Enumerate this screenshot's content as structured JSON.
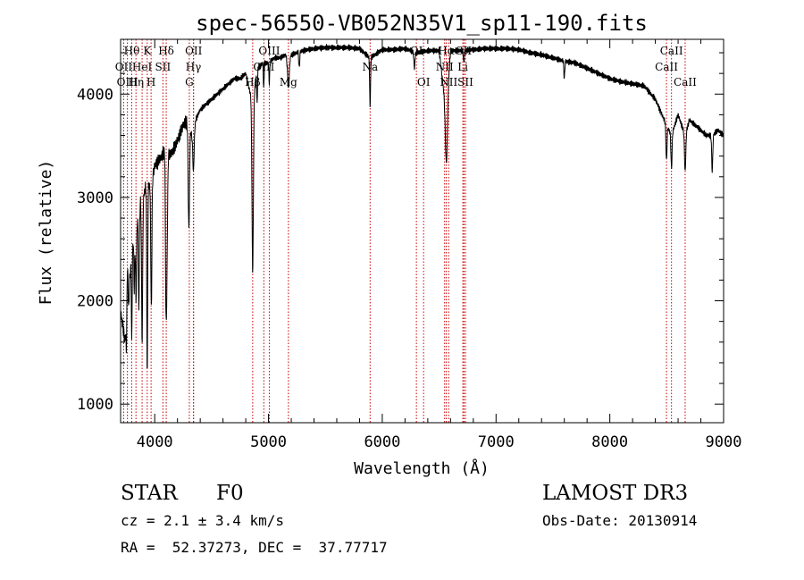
{
  "chart_data": {
    "type": "line",
    "title": "spec-56550-VB052N35V1_sp11-190.fits",
    "xlabel": "Wavelength (Å)",
    "ylabel": "Flux (relative)",
    "xlim": [
      3700,
      9000
    ],
    "ylim": [
      820,
      4530
    ],
    "xticks": [
      4000,
      5000,
      6000,
      7000,
      8000,
      9000
    ],
    "yticks": [
      1000,
      2000,
      3000,
      4000
    ],
    "grid": false,
    "spectrum_anchor_points": {
      "wavelength": [
        3700,
        3740,
        3760,
        3780,
        3800,
        3820,
        3840,
        3860,
        3880,
        3900,
        3920,
        3940,
        3960,
        3980,
        4000,
        4030,
        4060,
        4090,
        4101,
        4120,
        4160,
        4200,
        4250,
        4300,
        4340,
        4360,
        4400,
        4450,
        4500,
        4550,
        4600,
        4650,
        4700,
        4750,
        4800,
        4861,
        4900,
        4950,
        5000,
        5050,
        5100,
        5150,
        5175,
        5200,
        5250,
        5300,
        5350,
        5400,
        5500,
        5600,
        5700,
        5800,
        5893,
        6000,
        6100,
        6200,
        6300,
        6400,
        6500,
        6563,
        6600,
        6700,
        6800,
        6900,
        7000,
        7100,
        7200,
        7300,
        7400,
        7500,
        7600,
        7700,
        7800,
        7900,
        8000,
        8100,
        8200,
        8300,
        8400,
        8498,
        8542,
        8600,
        8662,
        8700,
        8750,
        8800,
        8850,
        8900,
        8950,
        9000
      ],
      "flux": [
        1900,
        1600,
        2300,
        2200,
        2500,
        2600,
        2700,
        2900,
        2950,
        3000,
        3100,
        3150,
        3100,
        3200,
        3300,
        3350,
        3400,
        3450,
        2200,
        3400,
        3450,
        3550,
        3700,
        3750,
        3500,
        3750,
        3850,
        3900,
        3950,
        4000,
        4050,
        4100,
        4150,
        4150,
        4200,
        3900,
        4250,
        4300,
        4300,
        4350,
        4350,
        4380,
        4300,
        4380,
        4400,
        4420,
        4430,
        4440,
        4450,
        4450,
        4450,
        4440,
        4350,
        4430,
        4430,
        4440,
        4400,
        4420,
        4420,
        3800,
        4420,
        4420,
        4430,
        4440,
        4440,
        4440,
        4430,
        4400,
        4380,
        4350,
        4320,
        4300,
        4250,
        4200,
        4150,
        4120,
        4100,
        4080,
        3950,
        3700,
        3600,
        3800,
        3600,
        3750,
        3700,
        3650,
        3600,
        3600,
        3650,
        3600
      ]
    },
    "absorption_dips": {
      "wavelength": [
        3734,
        3750,
        3771,
        3798,
        3820,
        3835,
        3860,
        3889,
        3934,
        3970,
        4101,
        4300,
        4340,
        4861,
        4900,
        4958,
        5007,
        5175,
        5270,
        5893,
        6282,
        6563,
        6717,
        7600,
        8498,
        8542,
        8662,
        8900
      ],
      "flux": [
        1700,
        1500,
        1900,
        1600,
        2100,
        2000,
        1900,
        1600,
        1250,
        1900,
        1800,
        2700,
        3250,
        2280,
        3900,
        4050,
        4100,
        4050,
        4250,
        3880,
        4250,
        3340,
        4300,
        4150,
        3350,
        3280,
        3250,
        3250
      ],
      "width": [
        10,
        10,
        10,
        10,
        10,
        12,
        12,
        14,
        12,
        14,
        16,
        18,
        14,
        18,
        10,
        10,
        10,
        20,
        12,
        12,
        14,
        24,
        12,
        12,
        14,
        14,
        16,
        14
      ]
    },
    "line_markers": [
      {
        "label": "Hθ",
        "wavelength": 3798,
        "row": 0
      },
      {
        "label": "K",
        "wavelength": 3934,
        "row": 0
      },
      {
        "label": "Hδ",
        "wavelength": 4101,
        "row": 0
      },
      {
        "label": "OII",
        "wavelength": 4342,
        "row": 0
      },
      {
        "label": "OIII",
        "wavelength": 5007,
        "row": 0
      },
      {
        "label": "OI",
        "wavelength": 6300,
        "row": 0
      },
      {
        "label": "Hα",
        "wavelength": 6563,
        "row": 0
      },
      {
        "label": "SII",
        "wavelength": 6717,
        "row": 0
      },
      {
        "label": "CaII",
        "wavelength": 8542,
        "row": 0
      },
      {
        "label": "OII",
        "wavelength": 3727,
        "row": 1
      },
      {
        "label": "HeI",
        "wavelength": 3889,
        "row": 1
      },
      {
        "label": "SII",
        "wavelength": 4072,
        "row": 1
      },
      {
        "label": "Hγ",
        "wavelength": 4340,
        "row": 1
      },
      {
        "label": "OIII",
        "wavelength": 4959,
        "row": 1
      },
      {
        "label": "Na",
        "wavelength": 5893,
        "row": 1
      },
      {
        "label": "NII",
        "wavelength": 6548,
        "row": 1
      },
      {
        "label": "Li",
        "wavelength": 6708,
        "row": 1
      },
      {
        "label": "CaII",
        "wavelength": 8498,
        "row": 1
      },
      {
        "label": "OIII",
        "wavelength": 3760,
        "row": 2
      },
      {
        "label": "Hη",
        "wavelength": 3835,
        "row": 2
      },
      {
        "label": "H",
        "wavelength": 3968,
        "row": 2
      },
      {
        "label": "G",
        "wavelength": 4304,
        "row": 2
      },
      {
        "label": "Hβ",
        "wavelength": 4861,
        "row": 2
      },
      {
        "label": "Mg",
        "wavelength": 5175,
        "row": 2
      },
      {
        "label": "OI",
        "wavelength": 6363,
        "row": 2
      },
      {
        "label": "NII",
        "wavelength": 6584,
        "row": 2
      },
      {
        "label": "SII",
        "wavelength": 6731,
        "row": 2
      },
      {
        "label": "CaII",
        "wavelength": 8662,
        "row": 2
      }
    ],
    "marker_color": "#cc0000",
    "line_color": "#000000"
  },
  "info": {
    "class_label": "STAR",
    "subclass": "F0",
    "survey": "LAMOST DR3",
    "cz": "cz = 2.1 ± 3.4 km/s",
    "obs_date": "Obs-Date: 20130914",
    "coords": "RA =  52.37273, DEC =  37.77717"
  }
}
